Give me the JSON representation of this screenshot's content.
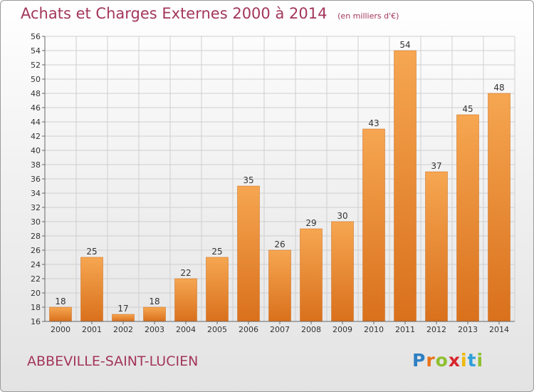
{
  "header": {
    "title": "Achats et Charges Externes 2000 à 2014",
    "subtitle": "(en milliers d'€)"
  },
  "commune": "ABBEVILLE-SAINT-LUCIEN",
  "logo": {
    "text": "Proxiti",
    "letters": [
      "P",
      "r",
      "o",
      "x",
      "i",
      "t",
      "i"
    ],
    "colors": [
      "#2e7fc2",
      "#e8731a",
      "#8fbf2f",
      "#d8262d",
      "#f0b800",
      "#2e9fd8",
      "#8fbf2f"
    ]
  },
  "colors": {
    "bar_light": "#f6a651",
    "bar_dark": "#d9701c",
    "bar_edge": "#c96a1a",
    "title": "#a3365a",
    "grid": "#cfcfcf",
    "axis": "#666666"
  },
  "chart_data": {
    "type": "bar",
    "title": "Achats et Charges Externes 2000 à 2014",
    "subtitle": "(en milliers d'€)",
    "categories": [
      "2000",
      "2001",
      "2002",
      "2003",
      "2004",
      "2005",
      "2006",
      "2007",
      "2008",
      "2009",
      "2010",
      "2011",
      "2012",
      "2013",
      "2014"
    ],
    "values": [
      18,
      25,
      17,
      18,
      22,
      25,
      35,
      26,
      29,
      30,
      43,
      54,
      37,
      45,
      48
    ],
    "ylim": [
      16,
      56
    ],
    "yticks": [
      16,
      18,
      20,
      22,
      24,
      26,
      28,
      30,
      32,
      34,
      36,
      38,
      40,
      42,
      44,
      46,
      48,
      50,
      52,
      54,
      56
    ],
    "grid": true,
    "data_labels": true
  }
}
